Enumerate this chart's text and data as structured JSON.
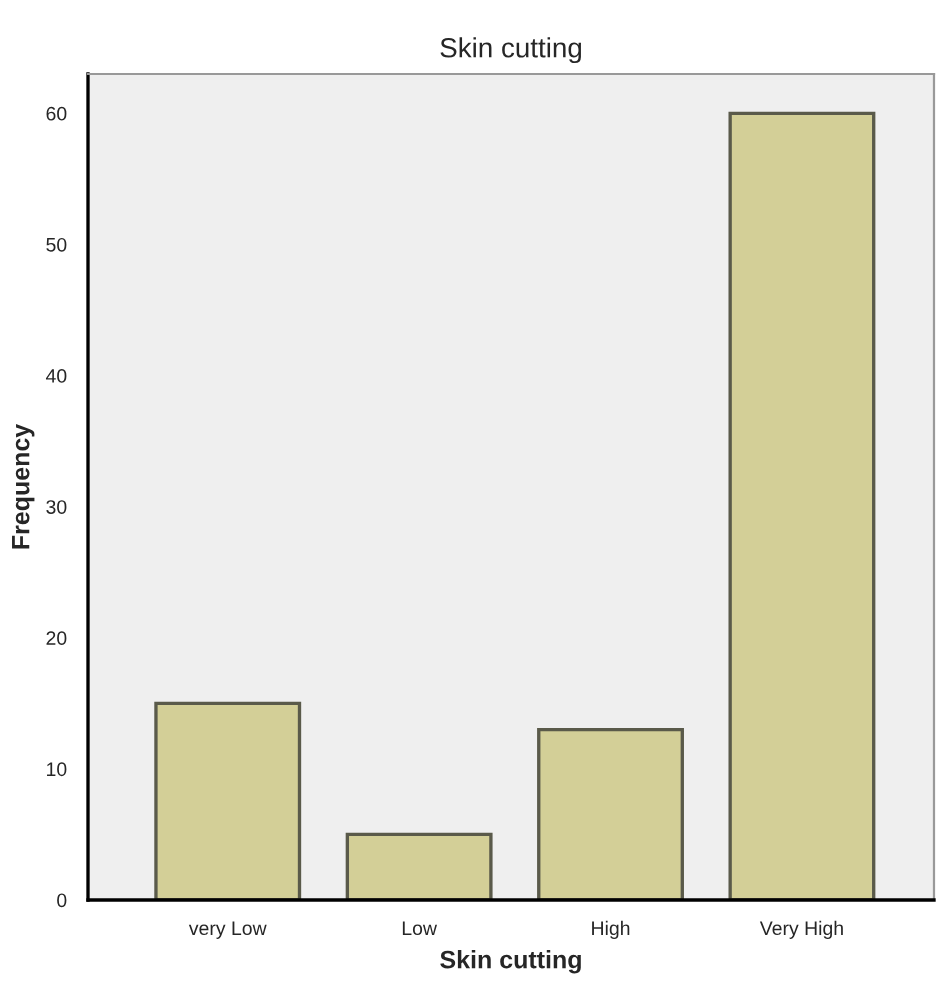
{
  "chart_data": {
    "type": "bar",
    "title": "Skin cutting",
    "xlabel": "Skin cutting",
    "ylabel": "Frequency",
    "categories": [
      "very Low",
      "Low",
      "High",
      "Very High"
    ],
    "values": [
      15,
      5,
      13,
      60
    ],
    "color": "#d3cf97",
    "ylim": [
      0,
      63
    ],
    "yticks": [
      0,
      10,
      20,
      30,
      40,
      50,
      60
    ],
    "grid": false
  }
}
